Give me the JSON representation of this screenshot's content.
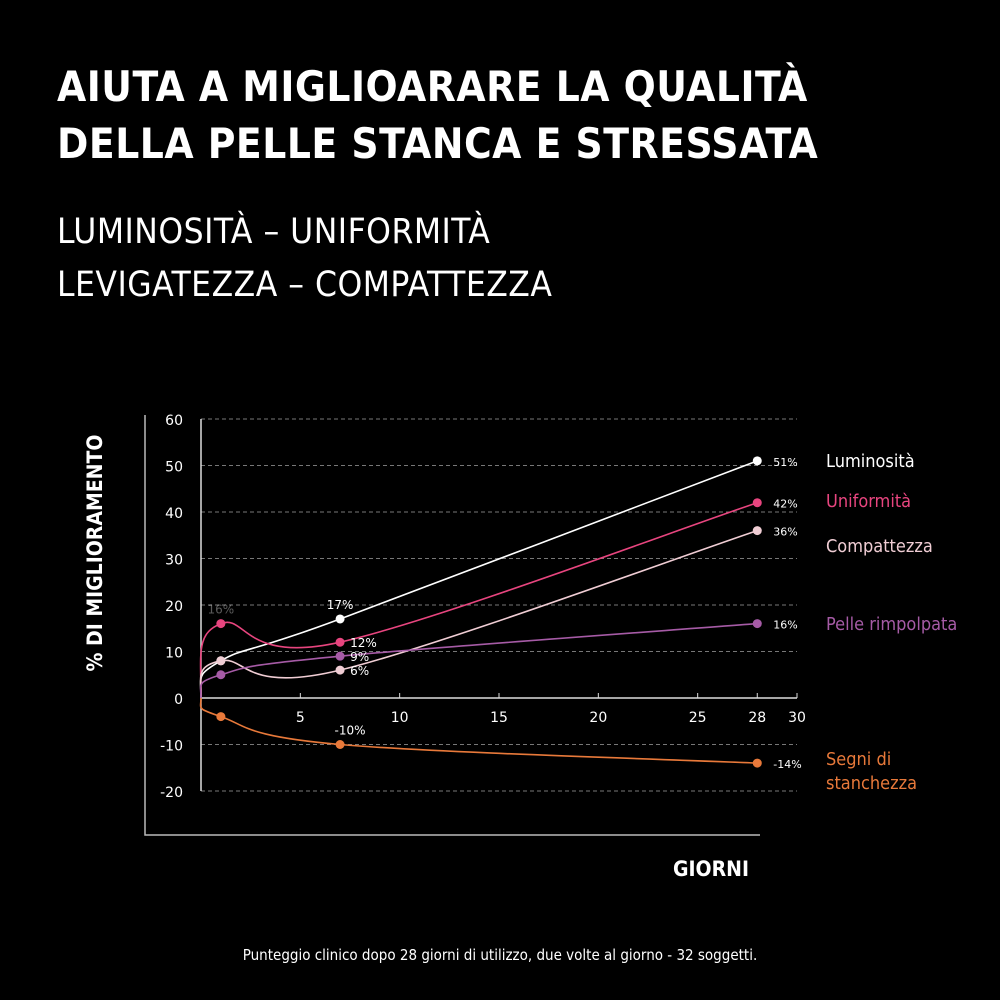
{
  "title": [
    "AIUTA A MIGLIOARARE LA QUALITÀ",
    "DELLA PELLE STANCA E STRESSATA"
  ],
  "subtitle": [
    "LUMINOSITÀ – UNIFORMITÀ",
    "LEVIGATEZZA – COMPATTEZZA"
  ],
  "footnote": "Punteggio clinico dopo 28 giorni di utilizzo, due volte al giorno - 32 soggetti.",
  "chart_data": {
    "type": "line",
    "xlabel": "GIORNI",
    "ylabel": "% DI MIGLIORAMENTO",
    "xlim": [
      0,
      30
    ],
    "ylim": [
      -20,
      60
    ],
    "xticks": [
      5,
      10,
      15,
      20,
      25,
      28,
      30
    ],
    "yticks": [
      -20,
      -10,
      0,
      10,
      20,
      30,
      40,
      50,
      60
    ],
    "grid": "horizontal dashed",
    "legend": "right",
    "series": [
      {
        "name": "Luminosità",
        "color": "#ffffff",
        "x": [
          0,
          1,
          7,
          28
        ],
        "y": [
          0,
          8,
          17,
          51
        ],
        "labels": [
          "",
          "",
          "17%",
          "51%"
        ]
      },
      {
        "name": "Uniformità",
        "color": "#e8457f",
        "x": [
          0,
          1,
          7,
          28
        ],
        "y": [
          0,
          16,
          12,
          42
        ],
        "labels": [
          "",
          "16%",
          "12%",
          "42%"
        ]
      },
      {
        "name": "Compattezza",
        "color": "#f0cdd4",
        "x": [
          0,
          1,
          7,
          28
        ],
        "y": [
          0,
          8,
          6,
          36
        ],
        "labels": [
          "",
          "",
          "6%",
          "36%"
        ]
      },
      {
        "name": "Pelle rimpolpata",
        "color": "#a65ba6",
        "x": [
          0,
          1,
          7,
          28
        ],
        "y": [
          0,
          5,
          9,
          16
        ],
        "labels": [
          "",
          "",
          "9%",
          "16%"
        ]
      },
      {
        "name": "Segni di stanchezza",
        "color": "#e8793a",
        "x": [
          0,
          1,
          7,
          28
        ],
        "y": [
          0,
          -4,
          -10,
          -14
        ],
        "labels": [
          "",
          "",
          "-10%",
          "-14%"
        ]
      }
    ]
  }
}
